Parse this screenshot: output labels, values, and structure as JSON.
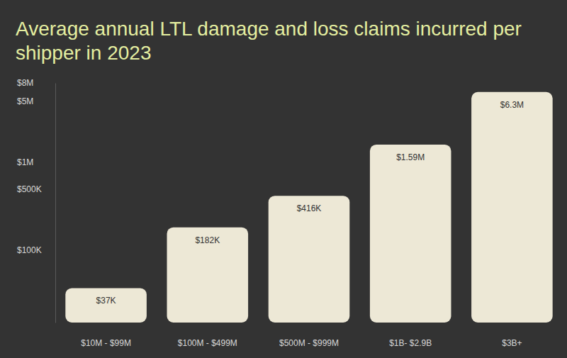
{
  "chart_data": {
    "type": "bar",
    "title": "Average annual LTL damage and loss claims incurred per shipper in 2023",
    "categories": [
      "$10M - $99M",
      "$100M - $499M",
      "$500M - $999M",
      "$1B- $2.9B",
      "$3B+"
    ],
    "values": [
      37000,
      182000,
      416000,
      1590000,
      6300000
    ],
    "value_labels": [
      "$37K",
      "$182K",
      "$416K",
      "$1.59M",
      "$6.3M"
    ],
    "color": "#ede8d6",
    "log": "y",
    "ylim": [
      15000,
      8000000
    ],
    "yticks": [
      {
        "value": 100000,
        "label": "$100K"
      },
      {
        "value": 500000,
        "label": "$500K"
      },
      {
        "value": 1000000,
        "label": "$1M"
      },
      {
        "value": 5000000,
        "label": "$5M"
      },
      {
        "value": 8000000,
        "label": "$8M"
      }
    ],
    "grid": false,
    "data_labels": true
  }
}
